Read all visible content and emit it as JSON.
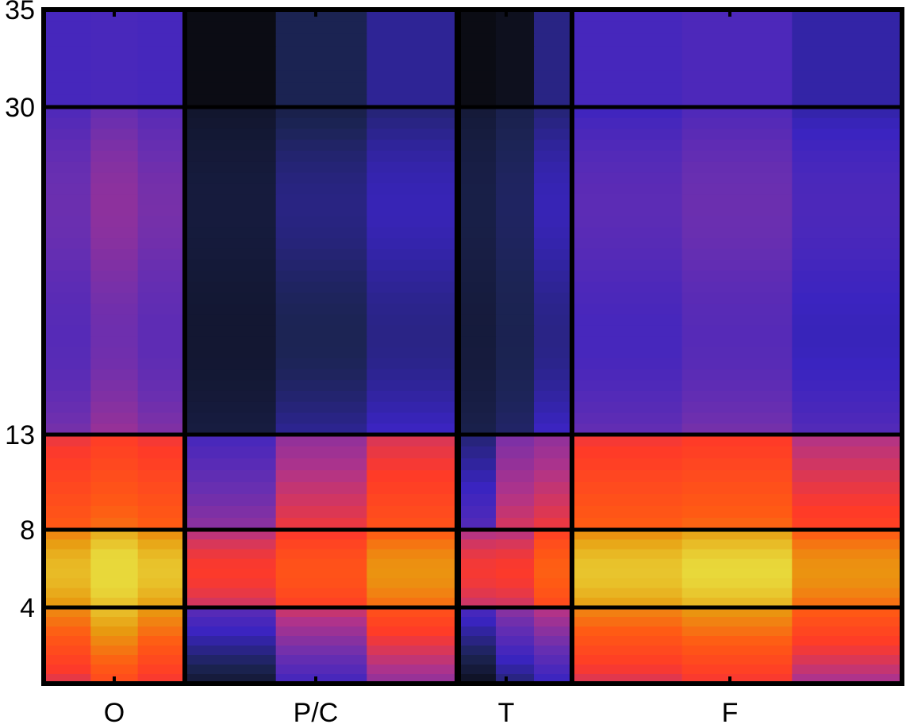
{
  "chart_data": {
    "type": "heatmap",
    "title": "",
    "xlabel": "",
    "ylabel": "",
    "x_groups": [
      "O",
      "P/C",
      "T",
      "F"
    ],
    "y_ticks": [
      4,
      8,
      13,
      30,
      35
    ],
    "y_scale": "piecewise-band",
    "ylim": [
      0,
      35
    ],
    "band_boundaries": [
      0,
      4,
      8,
      13,
      30,
      35
    ],
    "colormap": [
      "#0b0c14",
      "#1c2455",
      "#3a24c0",
      "#6a2fb0",
      "#b0338a",
      "#ff3a28",
      "#ff5a14",
      "#e89a10",
      "#e8d83a"
    ],
    "group_columns": {
      "O": [
        [
          0.75,
          0.86,
          0.78
        ],
        [
          0.88,
          0.96,
          0.9
        ],
        [
          0.69,
          0.73,
          0.7
        ],
        [
          0.38,
          0.44,
          0.4
        ],
        [
          0.28,
          0.29,
          0.28
        ]
      ],
      "P/C": [
        [
          0.24,
          0.45,
          0.62
        ],
        [
          0.56,
          0.66,
          0.8
        ],
        [
          0.38,
          0.54,
          0.66
        ],
        [
          0.08,
          0.18,
          0.24
        ],
        [
          0.0,
          0.12,
          0.2
        ]
      ],
      "T": [
        [
          0.2,
          0.34,
          0.42
        ],
        [
          0.55,
          0.56,
          0.7
        ],
        [
          0.26,
          0.5,
          0.54
        ],
        [
          0.1,
          0.14,
          0.24
        ],
        [
          0.0,
          0.02,
          0.18
        ]
      ],
      "F": [
        [
          0.74,
          0.78,
          0.66
        ],
        [
          0.9,
          0.94,
          0.8
        ],
        [
          0.7,
          0.72,
          0.6
        ],
        [
          0.34,
          0.38,
          0.3
        ],
        [
          0.28,
          0.3,
          0.22
        ]
      ]
    }
  }
}
